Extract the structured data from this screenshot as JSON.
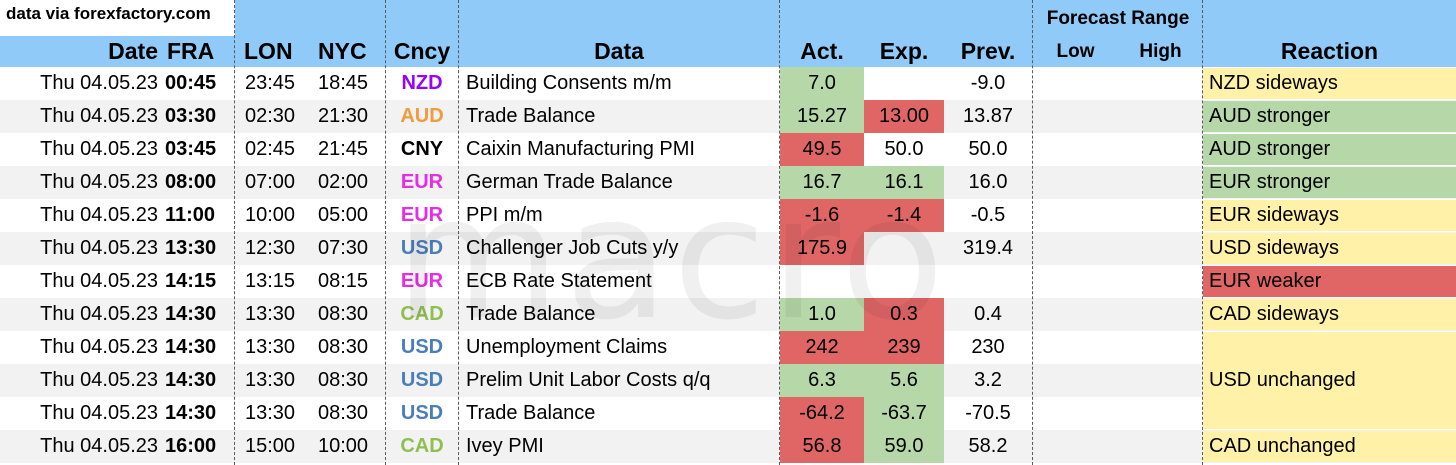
{
  "source_note": "data via forexfactory.com",
  "headers": {
    "date": "Date",
    "fra": "FRA",
    "lon": "LON",
    "nyc": "NYC",
    "cncy": "Cncy",
    "data": "Data",
    "act": "Act.",
    "exp": "Exp.",
    "prev": "Prev.",
    "forecast_range": "Forecast Range",
    "low": "Low",
    "high": "High",
    "reaction": "Reaction"
  },
  "watermark": "macro",
  "colors": {
    "header": "#8fcaf8",
    "green": "#b6d7a8",
    "red": "#e06666",
    "yellow": "#fff2a8",
    "NZD": "#9900ff",
    "AUD": "#f39a3c",
    "CNY": "#000000",
    "EUR": "#e62de6",
    "USD": "#4a7ebb",
    "CAD": "#8fbf4f"
  },
  "rows": [
    {
      "date": "Thu 04.05.23",
      "fra": "00:45",
      "lon": "23:45",
      "nyc": "18:45",
      "ccy": "NZD",
      "data": "Building Consents m/m",
      "act": "7.0",
      "exp": "",
      "prev": "-9.0",
      "act_color": "green",
      "exp_color": ""
    },
    {
      "date": "Thu 04.05.23",
      "fra": "03:30",
      "lon": "02:30",
      "nyc": "21:30",
      "ccy": "AUD",
      "data": "Trade Balance",
      "act": "15.27",
      "exp": "13.00",
      "prev": "13.87",
      "act_color": "green",
      "exp_color": "red"
    },
    {
      "date": "Thu 04.05.23",
      "fra": "03:45",
      "lon": "02:45",
      "nyc": "21:45",
      "ccy": "CNY",
      "data": "Caixin Manufacturing PMI",
      "act": "49.5",
      "exp": "50.0",
      "prev": "50.0",
      "act_color": "red",
      "exp_color": ""
    },
    {
      "date": "Thu 04.05.23",
      "fra": "08:00",
      "lon": "07:00",
      "nyc": "02:00",
      "ccy": "EUR",
      "data": "German Trade Balance",
      "act": "16.7",
      "exp": "16.1",
      "prev": "16.0",
      "act_color": "green",
      "exp_color": "green"
    },
    {
      "date": "Thu 04.05.23",
      "fra": "11:00",
      "lon": "10:00",
      "nyc": "05:00",
      "ccy": "EUR",
      "data": "PPI m/m",
      "act": "-1.6",
      "exp": "-1.4",
      "prev": "-0.5",
      "act_color": "red",
      "exp_color": "red"
    },
    {
      "date": "Thu 04.05.23",
      "fra": "13:30",
      "lon": "12:30",
      "nyc": "07:30",
      "ccy": "USD",
      "data": "Challenger Job Cuts y/y",
      "act": "175.9",
      "exp": "",
      "prev": "319.4",
      "act_color": "red",
      "exp_color": ""
    },
    {
      "date": "Thu 04.05.23",
      "fra": "14:15",
      "lon": "13:15",
      "nyc": "08:15",
      "ccy": "EUR",
      "data": "ECB Rate Statement",
      "act": "",
      "exp": "",
      "prev": "",
      "act_color": "",
      "exp_color": ""
    },
    {
      "date": "Thu 04.05.23",
      "fra": "14:30",
      "lon": "13:30",
      "nyc": "08:30",
      "ccy": "CAD",
      "data": "Trade Balance",
      "act": "1.0",
      "exp": "0.3",
      "prev": "0.4",
      "act_color": "green",
      "exp_color": "red"
    },
    {
      "date": "Thu 04.05.23",
      "fra": "14:30",
      "lon": "13:30",
      "nyc": "08:30",
      "ccy": "USD",
      "data": "Unemployment Claims",
      "act": "242",
      "exp": "239",
      "prev": "230",
      "act_color": "red",
      "exp_color": "red"
    },
    {
      "date": "Thu 04.05.23",
      "fra": "14:30",
      "lon": "13:30",
      "nyc": "08:30",
      "ccy": "USD",
      "data": "Prelim Unit Labor Costs q/q",
      "act": "6.3",
      "exp": "5.6",
      "prev": "3.2",
      "act_color": "green",
      "exp_color": "green"
    },
    {
      "date": "Thu 04.05.23",
      "fra": "14:30",
      "lon": "13:30",
      "nyc": "08:30",
      "ccy": "USD",
      "data": "Trade Balance",
      "act": "-64.2",
      "exp": "-63.7",
      "prev": "-70.5",
      "act_color": "red",
      "exp_color": "green"
    },
    {
      "date": "Thu 04.05.23",
      "fra": "16:00",
      "lon": "15:00",
      "nyc": "10:00",
      "ccy": "CAD",
      "data": "Ivey PMI",
      "act": "56.8",
      "exp": "59.0",
      "prev": "58.2",
      "act_color": "red",
      "exp_color": "green"
    }
  ],
  "reactions": [
    {
      "text": "NZD sideways",
      "color": "yellow",
      "start_row": 0,
      "rows": 1
    },
    {
      "text": "AUD stronger",
      "color": "green",
      "start_row": 1,
      "rows": 1
    },
    {
      "text": "AUD stronger",
      "color": "green",
      "start_row": 2,
      "rows": 1
    },
    {
      "text": "EUR stronger",
      "color": "green",
      "start_row": 3,
      "rows": 1
    },
    {
      "text": "EUR sideways",
      "color": "yellow",
      "start_row": 4,
      "rows": 1
    },
    {
      "text": "USD sideways",
      "color": "yellow",
      "start_row": 5,
      "rows": 1
    },
    {
      "text": "EUR weaker",
      "color": "red",
      "start_row": 6,
      "rows": 1
    },
    {
      "text": "CAD sideways",
      "color": "yellow",
      "start_row": 7,
      "rows": 1
    },
    {
      "text": "USD unchanged",
      "color": "yellow",
      "start_row": 8,
      "rows": 3
    },
    {
      "text": "CAD unchanged",
      "color": "yellow",
      "start_row": 11,
      "rows": 1
    }
  ]
}
